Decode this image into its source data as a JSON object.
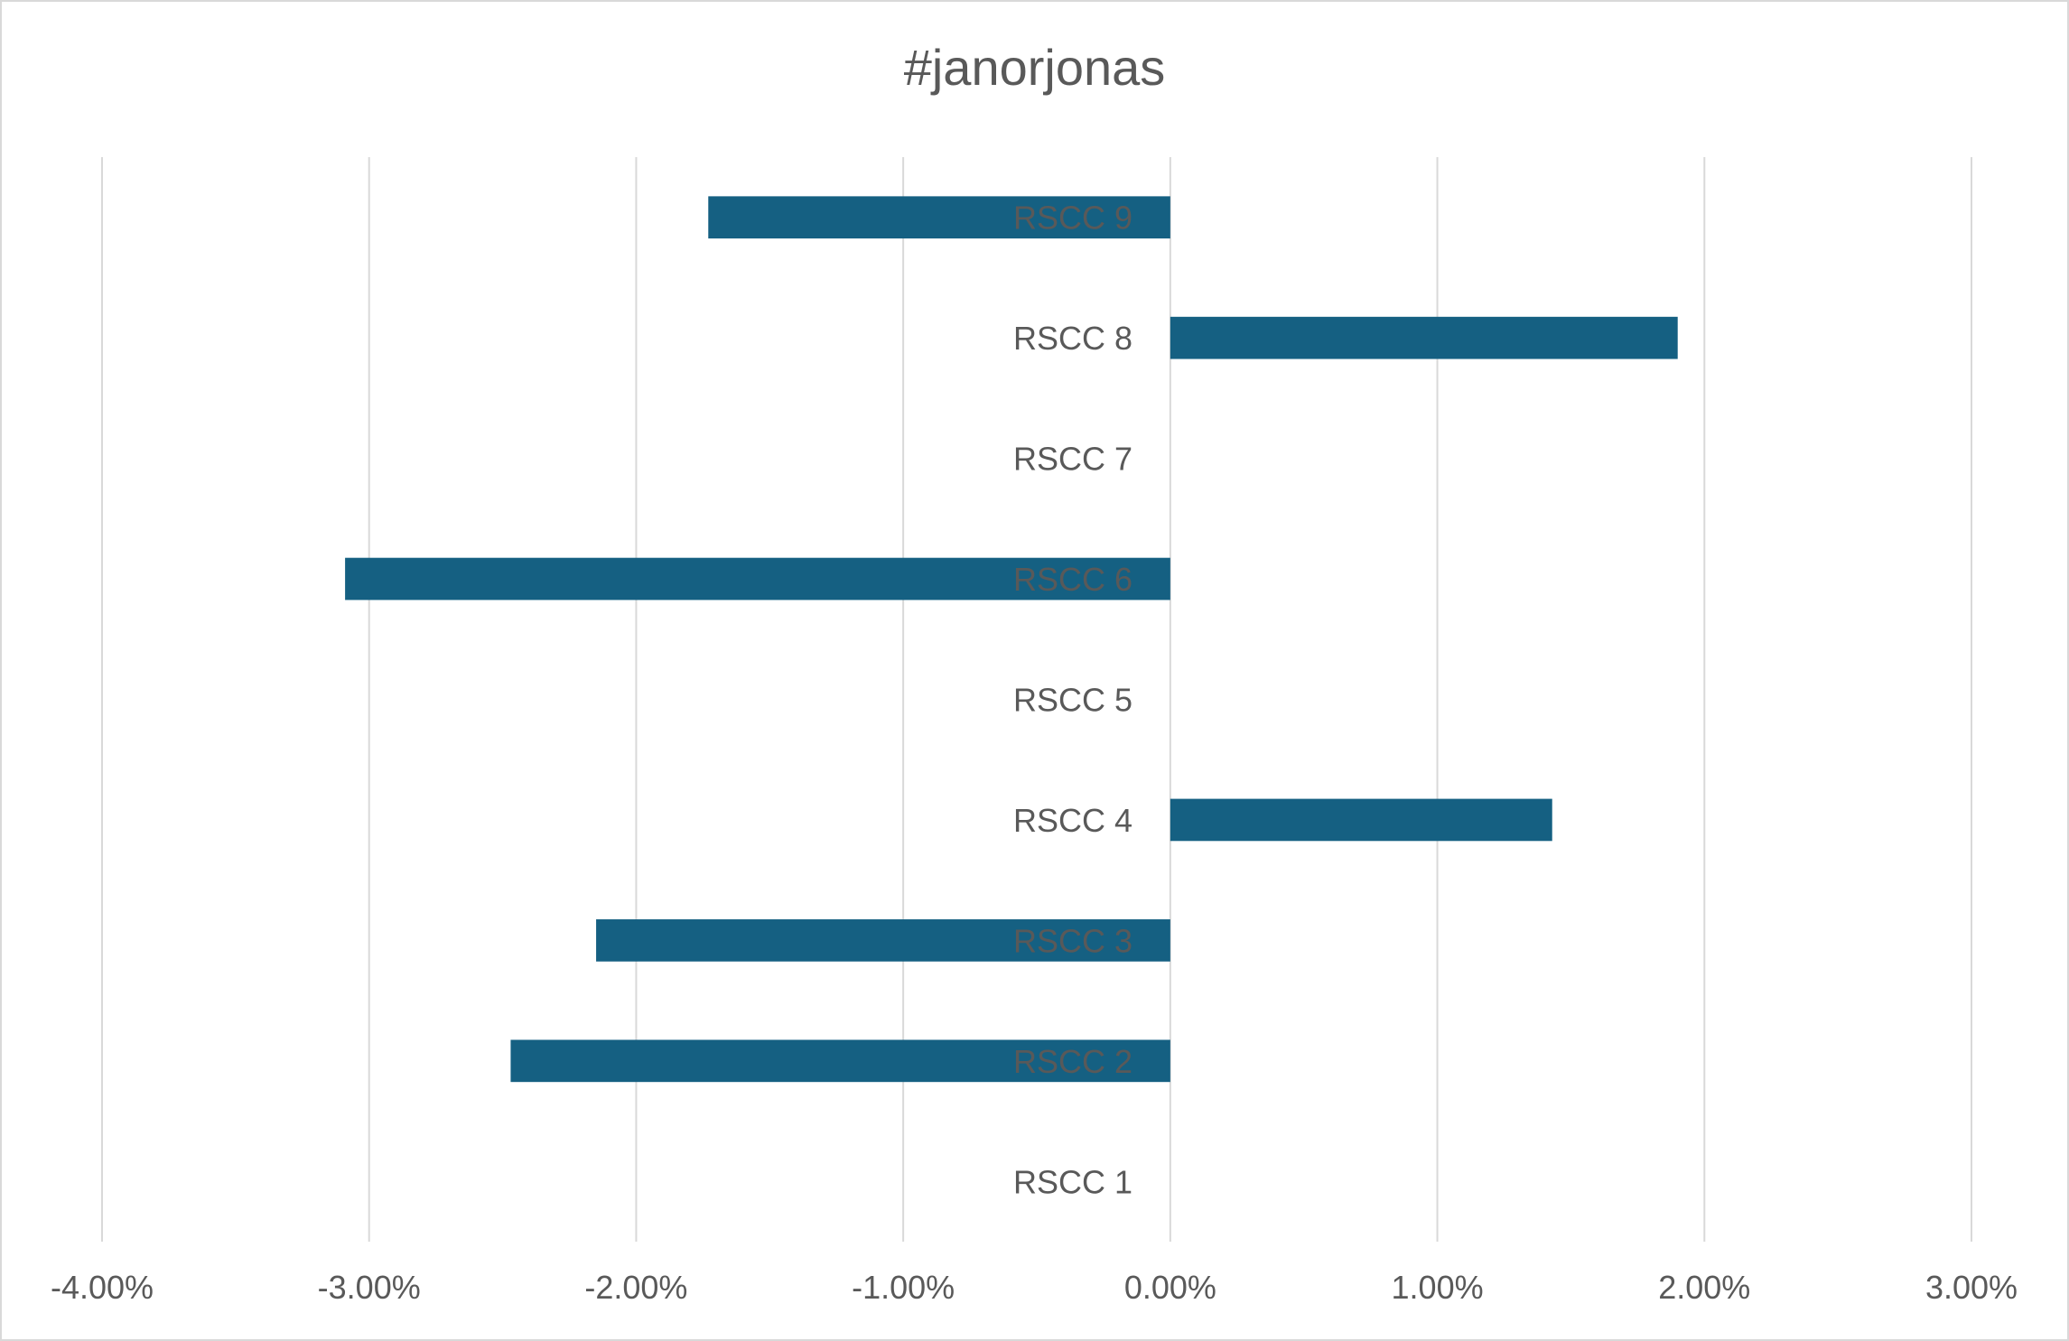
{
  "chart_data": {
    "type": "bar",
    "orientation": "horizontal",
    "title": "#janorjonas",
    "categories": [
      "RSCC 1",
      "RSCC 2",
      "RSCC 3",
      "RSCC 4",
      "RSCC 5",
      "RSCC 6",
      "RSCC 7",
      "RSCC 8",
      "RSCC 9"
    ],
    "series": [
      {
        "values": [
          0,
          -0.0247,
          -0.0215,
          0.0143,
          0,
          -0.0309,
          0,
          0.019,
          -0.0173
        ]
      }
    ],
    "xlim": [
      -0.04,
      0.03
    ],
    "xticks": [
      -0.04,
      -0.03,
      -0.02,
      -0.01,
      0,
      0.01,
      0.02,
      0.03
    ],
    "xtick_labels": [
      "-4.00%",
      "-3.00%",
      "-2.00%",
      "-1.00%",
      "0.00%",
      "1.00%",
      "2.00%",
      "3.00%"
    ],
    "xlabel": "",
    "ylabel": "",
    "grid": "vertical",
    "legend": "none",
    "colors": {
      "bar": "#156082",
      "grid": "#d9d9d9",
      "text": "#595959"
    }
  }
}
